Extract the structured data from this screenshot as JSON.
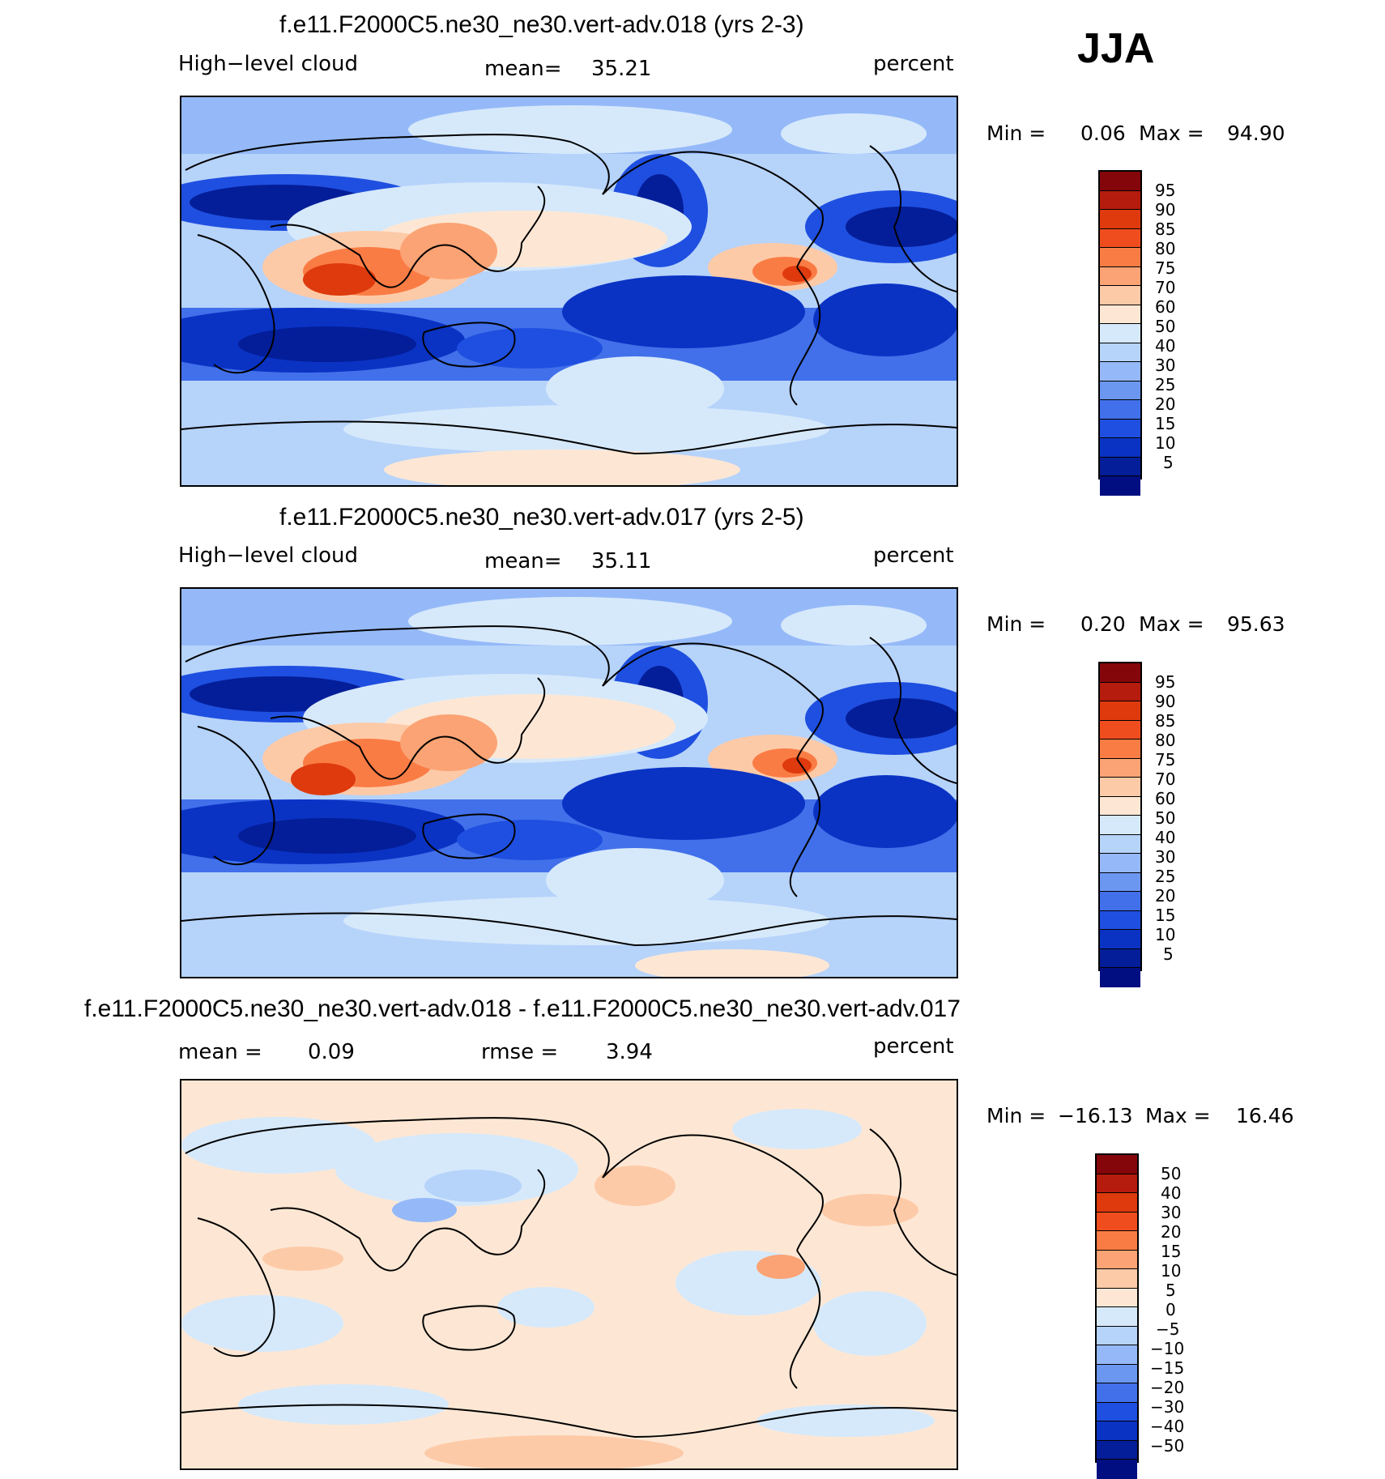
{
  "season": "JJA",
  "palette_pos": [
    "#85060a",
    "#b51c0d",
    "#de3a0d",
    "#f04d1e",
    "#fa7c45",
    "#fba374",
    "#fdcaa8",
    "#fde7d4",
    "#d6e9fb",
    "#b6d3fa",
    "#95b9f8",
    "#6b97f1",
    "#4170ea",
    "#1f4fe0",
    "#0a33c4",
    "#041e99",
    "#000e82"
  ],
  "palette_diff": [
    "#85060a",
    "#b51c0d",
    "#de3a0d",
    "#f04d1e",
    "#fa7c45",
    "#fba374",
    "#fdcaa8",
    "#fde7d4",
    "#d6e9fb",
    "#b6d3fa",
    "#95b9f8",
    "#6b97f1",
    "#4170ea",
    "#1f4fe0",
    "#0a33c4",
    "#041e99",
    "#000e82"
  ],
  "panels": [
    {
      "title": "f.e11.F2000C5.ne30_ne30.vert-adv.018 (yrs 2-3)",
      "left_label": "High−level cloud",
      "mid_label": "mean=",
      "mid_value": "35.21",
      "units": "percent",
      "min_label": "Min =",
      "min_value": "0.06",
      "max_label": "Max =",
      "max_value": "94.90",
      "levels": [
        "95",
        "90",
        "85",
        "80",
        "75",
        "70",
        "60",
        "50",
        "40",
        "30",
        "25",
        "20",
        "15",
        "10",
        "5"
      ]
    },
    {
      "title": "f.e11.F2000C5.ne30_ne30.vert-adv.017 (yrs 2-5)",
      "left_label": "High−level cloud",
      "mid_label": "mean=",
      "mid_value": "35.11",
      "units": "percent",
      "min_label": "Min =",
      "min_value": "0.20",
      "max_label": "Max =",
      "max_value": "95.63",
      "levels": [
        "95",
        "90",
        "85",
        "80",
        "75",
        "70",
        "60",
        "50",
        "40",
        "30",
        "25",
        "20",
        "15",
        "10",
        "5"
      ]
    },
    {
      "title": "f.e11.F2000C5.ne30_ne30.vert-adv.018 - f.e11.F2000C5.ne30_ne30.vert-adv.017",
      "left_label": "mean =",
      "left_value": "0.09",
      "mid_label": "rmse =",
      "mid_value": "3.94",
      "units": "percent",
      "min_label": "Min =",
      "min_value": "−16.13",
      "max_label": "Max =",
      "max_value": "16.46",
      "levels": [
        "50",
        "40",
        "30",
        "20",
        "15",
        "10",
        "5",
        "0",
        "−5",
        "−10",
        "−15",
        "−20",
        "−30",
        "−40",
        "−50"
      ]
    }
  ]
}
